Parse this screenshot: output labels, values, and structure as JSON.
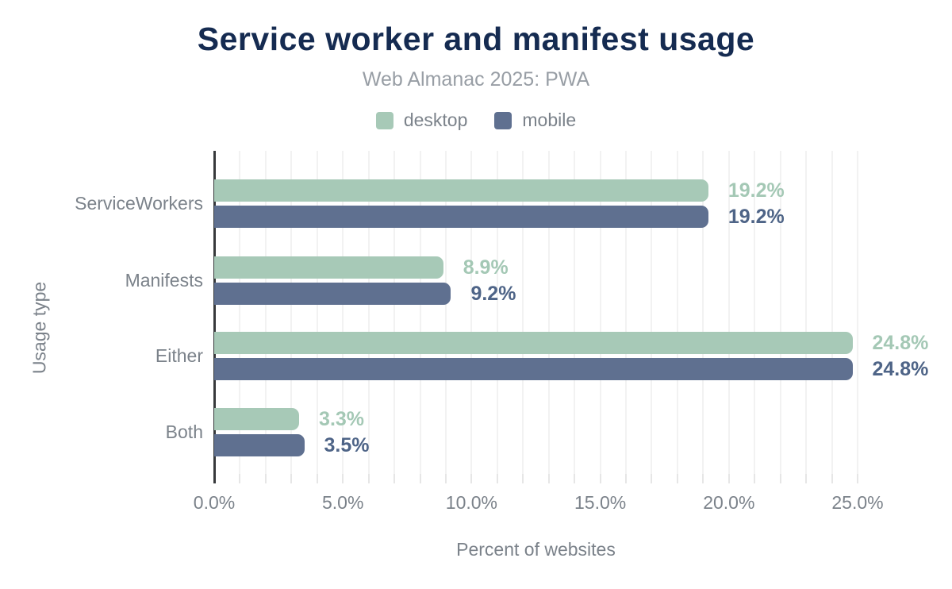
{
  "chart_data": {
    "type": "bar",
    "orientation": "horizontal",
    "title": "Service worker and manifest usage",
    "subtitle": "Web Almanac 2025: PWA",
    "xlabel": "Percent of websites",
    "ylabel": "Usage type",
    "categories": [
      "ServiceWorkers",
      "Manifests",
      "Either",
      "Both"
    ],
    "series": [
      {
        "name": "desktop",
        "color": "#a7c9b7",
        "label_color": "#a4c8b5",
        "values": [
          19.2,
          8.9,
          24.8,
          3.3
        ],
        "value_labels": [
          "19.2%",
          "8.9%",
          "24.8%",
          "3.3%"
        ]
      },
      {
        "name": "mobile",
        "color": "#5f7090",
        "label_color": "#4e6487",
        "values": [
          19.2,
          9.2,
          24.8,
          3.5
        ],
        "value_labels": [
          "19.2%",
          "9.2%",
          "24.8%",
          "3.5%"
        ]
      }
    ],
    "xlim": [
      0,
      25
    ],
    "x_tick_step": 5,
    "x_minor_step": 1,
    "x_tick_labels": [
      "0.0%",
      "5.0%",
      "10.0%",
      "15.0%",
      "20.0%",
      "25.0%"
    ],
    "grid": "vertical-minor",
    "legend_position": "top"
  },
  "colors": {
    "background": "#ffffff",
    "title": "#152b51",
    "subtitle": "#989ea5",
    "muted_text": "#7b828a",
    "axis_line": "#37393b",
    "gridline": "#f2f2f2",
    "minor_tick": "#e6e6e6"
  }
}
